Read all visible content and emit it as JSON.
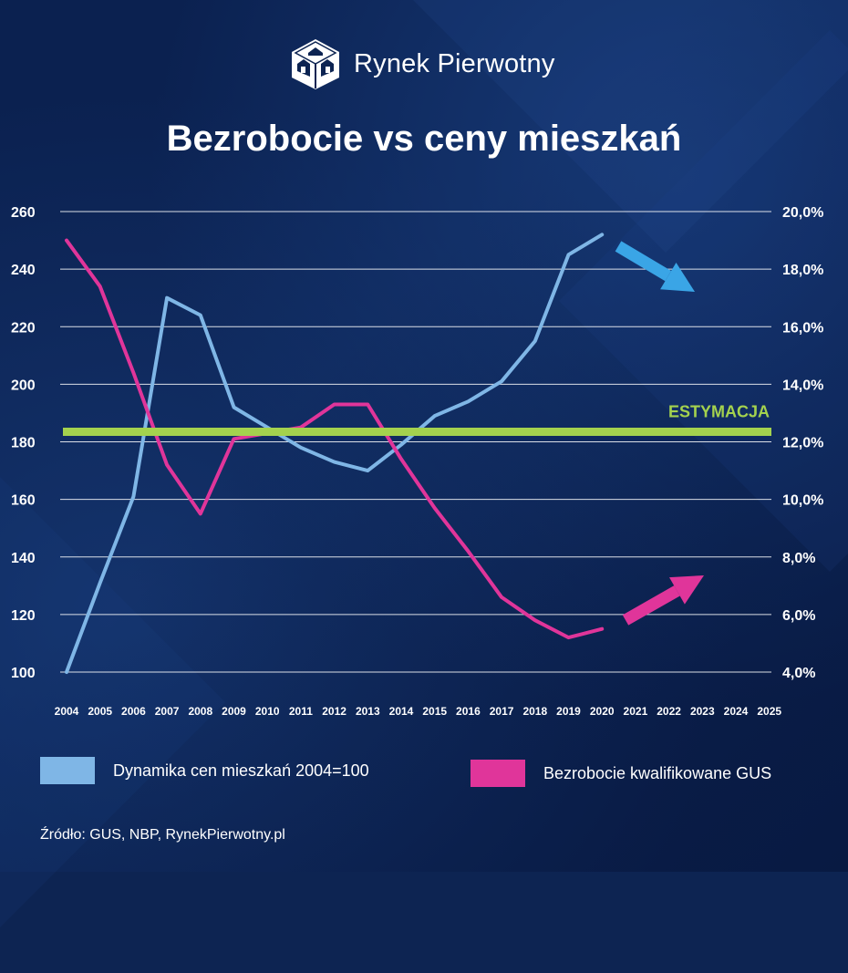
{
  "brand": {
    "name": "Rynek Pierwotny"
  },
  "icons": {
    "logo": "house-cube-logo-icon"
  },
  "title": "Bezrobocie vs ceny mieszkań",
  "legend": [
    {
      "label": "Dynamika cen mieszkań 2004=100",
      "color": "#7fb6e6"
    },
    {
      "label": "Bezrobocie kwalifikowane GUS",
      "color": "#e0359a"
    }
  ],
  "source": "Źródło: GUS, NBP, RynekPierwotny.pl",
  "colors": {
    "price": "#7fb6e6",
    "unemployment": "#e0359a",
    "estimate": "#a4d24e",
    "arrow_down": "#3aa5e6",
    "arrow_up": "#e0359a"
  },
  "chart_data": {
    "type": "line",
    "title": "Bezrobocie vs ceny mieszkań",
    "categories": [
      "2004",
      "2005",
      "2006",
      "2007",
      "2008",
      "2009",
      "2010",
      "2011",
      "2012",
      "2013",
      "2014",
      "2015",
      "2016",
      "2017",
      "2018",
      "2019",
      "2020",
      "2021",
      "2022",
      "2023",
      "2024",
      "2025"
    ],
    "left_axis": {
      "ticks": [
        "100",
        "120",
        "140",
        "160",
        "180",
        "200",
        "220",
        "240",
        "260"
      ],
      "ylim": [
        100,
        260
      ]
    },
    "right_axis": {
      "ticks": [
        "4,0%",
        "6,0%",
        "8,0%",
        "10,0%",
        "12,0%",
        "14,0%",
        "16,0%",
        "18,0%",
        "20,0%"
      ],
      "ylim": [
        4.0,
        20.0
      ]
    },
    "series": [
      {
        "name": "Dynamika cen mieszkań 2004=100",
        "axis": "left",
        "x": [
          "2004",
          "2005",
          "2006",
          "2007",
          "2008",
          "2009",
          "2010",
          "2011",
          "2012",
          "2013",
          "2014",
          "2015",
          "2016",
          "2017",
          "2018",
          "2019",
          "2020"
        ],
        "values": [
          100,
          131,
          161,
          230,
          224,
          192,
          185,
          178,
          173,
          170,
          179,
          189,
          194,
          201,
          215,
          245,
          252
        ]
      },
      {
        "name": "Bezrobocie kwalifikowane GUS",
        "axis": "right",
        "x": [
          "2004",
          "2005",
          "2006",
          "2007",
          "2008",
          "2009",
          "2010",
          "2011",
          "2012",
          "2013",
          "2014",
          "2015",
          "2016",
          "2017",
          "2018",
          "2019",
          "2020"
        ],
        "values": [
          19.0,
          17.4,
          14.4,
          11.2,
          9.5,
          12.1,
          12.3,
          12.5,
          13.3,
          13.3,
          11.4,
          9.7,
          8.2,
          6.6,
          5.8,
          5.2,
          5.5
        ]
      }
    ],
    "annotations": [
      {
        "type": "horizontal-line",
        "label": "ESTYMACJA",
        "axis": "left",
        "value": 183.5
      },
      {
        "type": "arrow",
        "direction": "down",
        "series": "Dynamika cen mieszkań 2004=100"
      },
      {
        "type": "arrow",
        "direction": "up",
        "series": "Bezrobocie kwalifikowane GUS"
      }
    ],
    "grid": true
  }
}
